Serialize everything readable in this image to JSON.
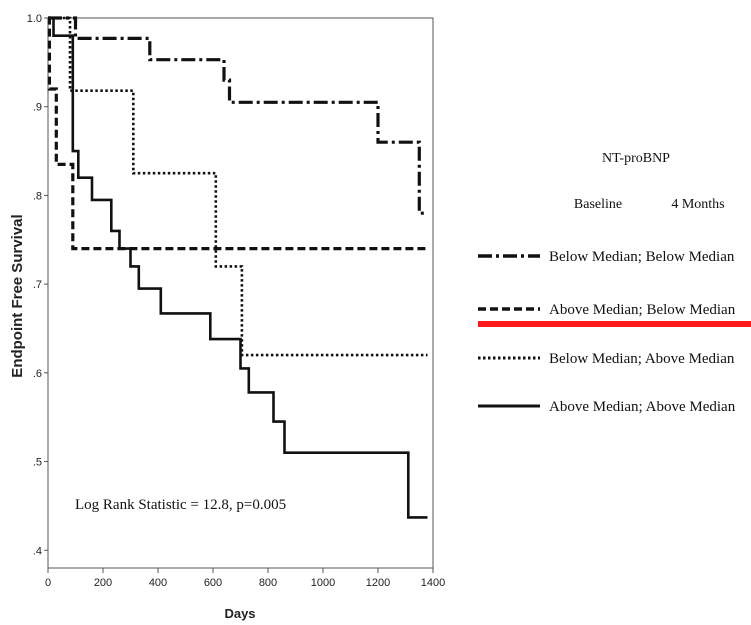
{
  "chart_data": {
    "type": "line",
    "title": "",
    "xlabel": "Days",
    "ylabel": "Endpoint Free Survival",
    "xlim": [
      0,
      1400
    ],
    "ylim": [
      0.38,
      1.0
    ],
    "x_ticks": [
      0,
      200,
      400,
      600,
      800,
      1000,
      1200,
      1400
    ],
    "y_ticks": [
      {
        "value": 1.0,
        "label": "1.0"
      },
      {
        "value": 0.9,
        "label": ".9"
      },
      {
        "value": 0.8,
        "label": ".8"
      },
      {
        "value": 0.7,
        "label": ".7"
      },
      {
        "value": 0.6,
        "label": ".6"
      },
      {
        "value": 0.5,
        "label": ".5"
      },
      {
        "value": 0.4,
        "label": ".4"
      }
    ],
    "grid": false,
    "step": true,
    "legend": {
      "title": "NT-proBNP",
      "col1": "Baseline",
      "col2": "4 Months",
      "placement": "right"
    },
    "annotation": "Log Rank Statistic = 12.8, p=0.005",
    "series": [
      {
        "name": "Below Median; Below Median",
        "style": "dashdot",
        "points": [
          [
            0,
            1.0
          ],
          [
            100,
            1.0
          ],
          [
            100,
            0.977
          ],
          [
            370,
            0.977
          ],
          [
            370,
            0.953
          ],
          [
            640,
            0.953
          ],
          [
            640,
            0.93
          ],
          [
            660,
            0.93
          ],
          [
            660,
            0.905
          ],
          [
            1200,
            0.905
          ],
          [
            1200,
            0.86
          ],
          [
            1350,
            0.86
          ],
          [
            1350,
            0.78
          ],
          [
            1380,
            0.78
          ]
        ]
      },
      {
        "name": "Above Median; Below Median",
        "style": "dashed",
        "points": [
          [
            0,
            1.0
          ],
          [
            5,
            1.0
          ],
          [
            5,
            0.92
          ],
          [
            30,
            0.92
          ],
          [
            30,
            0.835
          ],
          [
            90,
            0.835
          ],
          [
            90,
            0.74
          ],
          [
            1380,
            0.74
          ]
        ]
      },
      {
        "name": "Below Median; Above Median",
        "style": "dotted",
        "points": [
          [
            0,
            1.0
          ],
          [
            80,
            1.0
          ],
          [
            80,
            0.918
          ],
          [
            310,
            0.918
          ],
          [
            310,
            0.825
          ],
          [
            610,
            0.825
          ],
          [
            610,
            0.72
          ],
          [
            705,
            0.72
          ],
          [
            705,
            0.62
          ],
          [
            1380,
            0.62
          ]
        ]
      },
      {
        "name": "Above Median; Above Median",
        "style": "solid",
        "points": [
          [
            0,
            1.0
          ],
          [
            20,
            1.0
          ],
          [
            20,
            0.98
          ],
          [
            90,
            0.98
          ],
          [
            90,
            0.85
          ],
          [
            110,
            0.85
          ],
          [
            110,
            0.82
          ],
          [
            160,
            0.82
          ],
          [
            160,
            0.795
          ],
          [
            230,
            0.795
          ],
          [
            230,
            0.76
          ],
          [
            260,
            0.76
          ],
          [
            260,
            0.74
          ],
          [
            300,
            0.74
          ],
          [
            300,
            0.72
          ],
          [
            330,
            0.72
          ],
          [
            330,
            0.695
          ],
          [
            410,
            0.695
          ],
          [
            410,
            0.667
          ],
          [
            590,
            0.667
          ],
          [
            590,
            0.638
          ],
          [
            700,
            0.638
          ],
          [
            700,
            0.605
          ],
          [
            730,
            0.605
          ],
          [
            730,
            0.578
          ],
          [
            820,
            0.578
          ],
          [
            820,
            0.545
          ],
          [
            860,
            0.545
          ],
          [
            860,
            0.51
          ],
          [
            1310,
            0.51
          ],
          [
            1310,
            0.437
          ],
          [
            1380,
            0.437
          ]
        ]
      }
    ]
  },
  "highlight": {
    "color": "#ff1a1a",
    "target_series": "Above Median; Below Median"
  }
}
